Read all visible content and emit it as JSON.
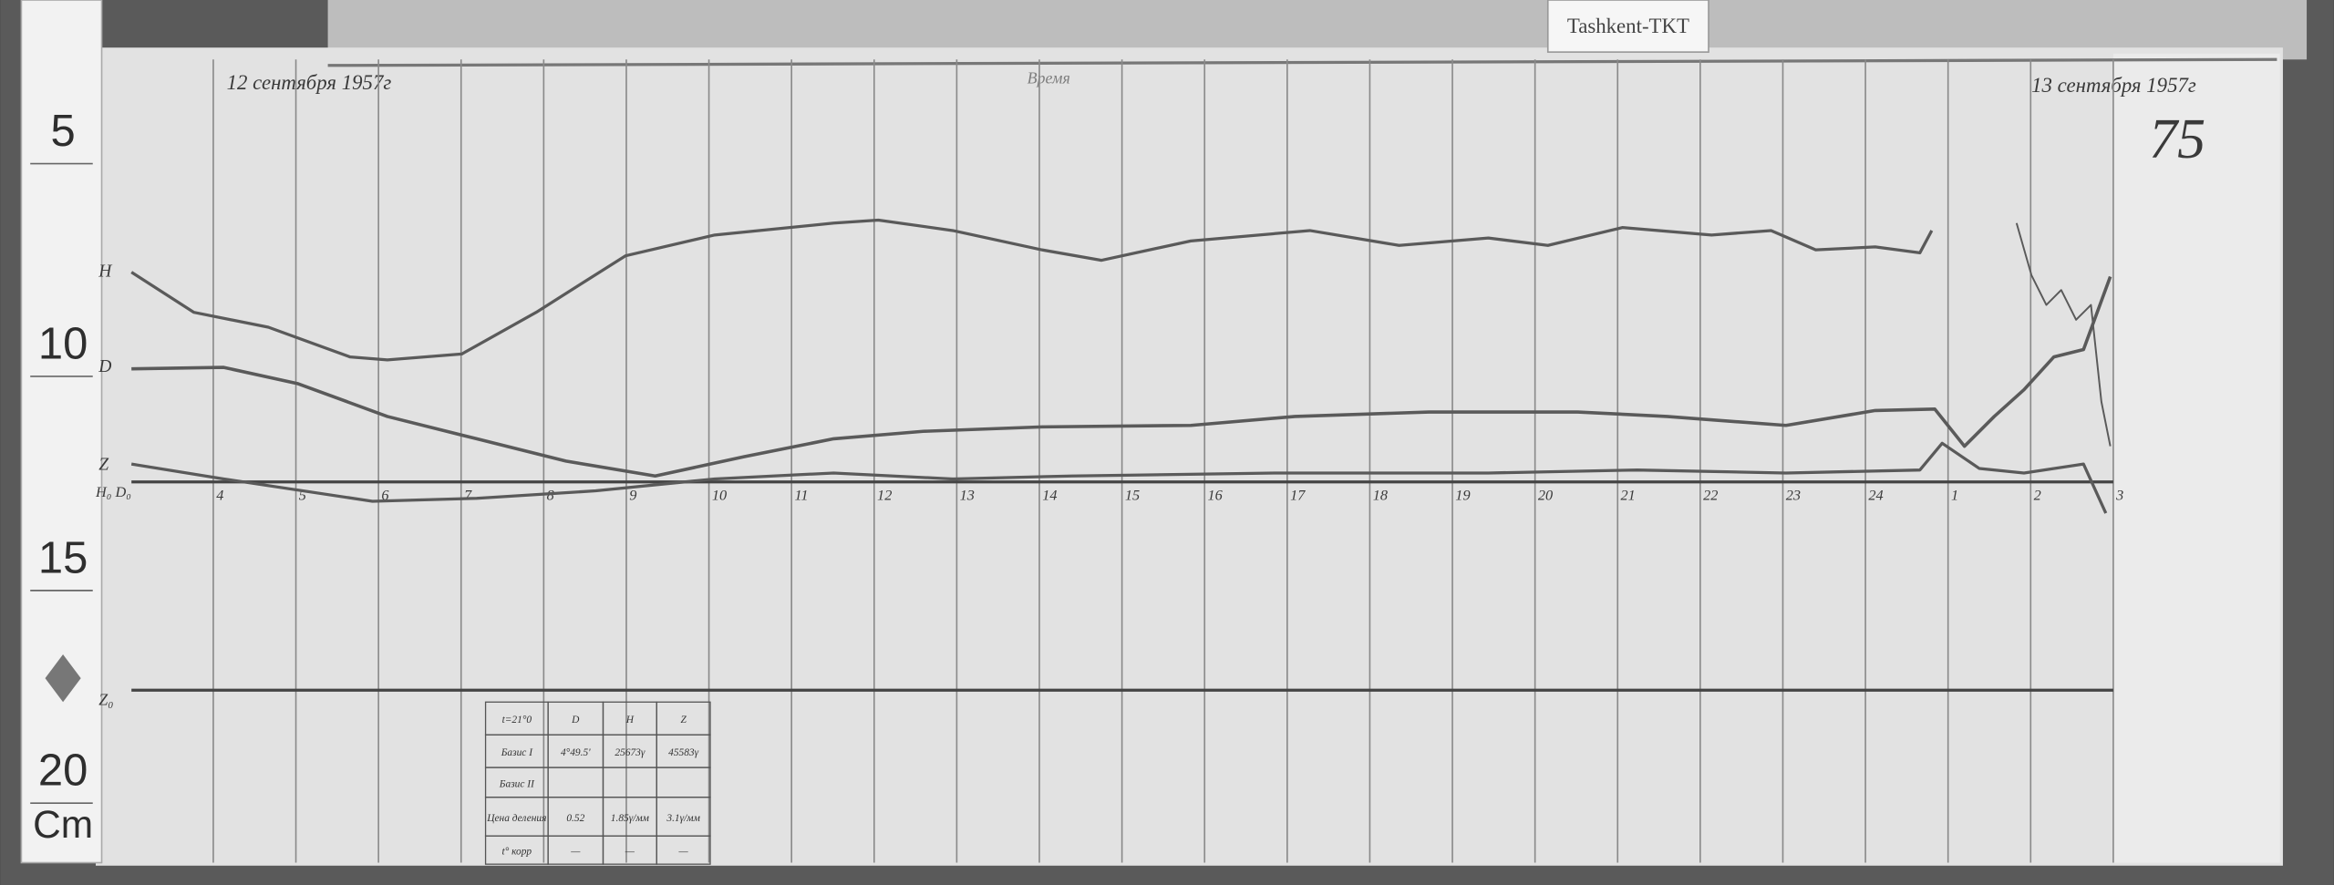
{
  "header": {
    "station": "Tashkent-TKT",
    "sheet_number": "75",
    "date_start": "12 сентября 1957г",
    "date_end": "13 сентября 1957г",
    "time_title": "Время"
  },
  "ruler": {
    "marks": [
      "5",
      "10",
      "15",
      "20"
    ],
    "unit": "Cm"
  },
  "curve_labels": {
    "h": "H",
    "d": "D",
    "z": "Z",
    "baseline_hd": "H₀ D₀",
    "baseline_z": "Z₀"
  },
  "hours": [
    "4",
    "5",
    "6",
    "7",
    "8",
    "9",
    "10",
    "11",
    "12",
    "13",
    "14",
    "15",
    "16",
    "17",
    "18",
    "19",
    "20",
    "21",
    "22",
    "23",
    "24",
    "1",
    "2",
    "3"
  ],
  "table": {
    "rows": [
      [
        "t=21°0",
        "D",
        "H",
        "Z"
      ],
      [
        "Базис I",
        "4°49.5'",
        "25673γ",
        "45583γ"
      ],
      [
        "Базис II"
      ],
      [
        "Цена деления",
        "0.52",
        "1.85γ/мм",
        "3.1γ/мм"
      ],
      [
        "t° корр",
        "—",
        "—",
        "—"
      ]
    ]
  }
}
